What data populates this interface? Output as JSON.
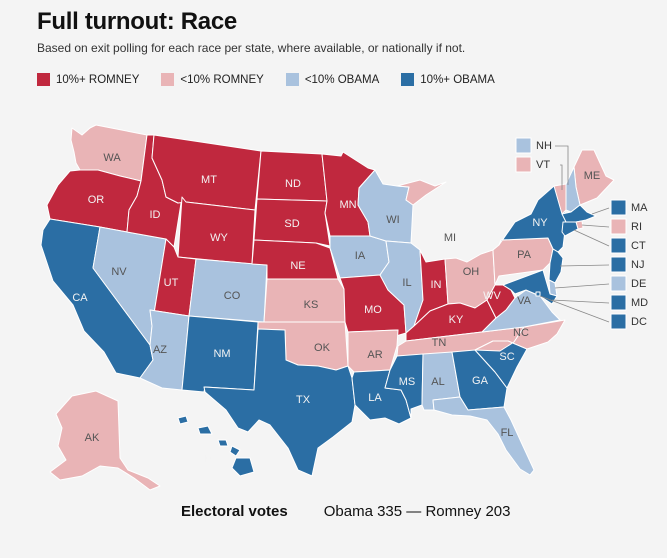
{
  "title": "Full turnout: Race",
  "subtitle": "Based on exit polling for each race per state, where available, or nationally if not.",
  "legend": [
    {
      "label": "10%+ ROMNEY",
      "color": "#c0283e"
    },
    {
      "label": "<10% ROMNEY",
      "color": "#e9b4b6"
    },
    {
      "label": "<10% OBAMA",
      "color": "#a9c2de"
    },
    {
      "label": "10%+ OBAMA",
      "color": "#2b6ea4"
    }
  ],
  "categories": {
    "R10": "10%+ ROMNEY",
    "R": "<10% ROMNEY",
    "O": "<10% OBAMA",
    "O10": "10%+ OBAMA"
  },
  "states": {
    "WA": "R",
    "OR": "R10",
    "CA": "O10",
    "NV": "O",
    "ID": "R10",
    "MT": "R10",
    "WY": "R10",
    "UT": "R10",
    "AZ": "O",
    "CO": "O",
    "NM": "O10",
    "ND": "R10",
    "SD": "R10",
    "NE": "R10",
    "KS": "R",
    "OK": "R",
    "TX": "O10",
    "MN": "R10",
    "IA": "O",
    "MO": "R10",
    "AR": "R",
    "LA": "O10",
    "WI": "O",
    "IL": "O",
    "MI": "R",
    "IN": "R10",
    "OH": "R",
    "KY": "R10",
    "TN": "R",
    "MS": "O10",
    "AL": "O",
    "GA": "O10",
    "FL": "O",
    "SC": "O10",
    "NC": "R",
    "VA": "O",
    "WV": "R10",
    "PA": "R",
    "NY": "O10",
    "ME": "R",
    "AK": "R",
    "HI": "O10",
    "NH": "O",
    "VT": "R",
    "MA": "O10",
    "RI": "R",
    "CT": "O10",
    "NJ": "O10",
    "DE": "O",
    "MD": "O10",
    "DC": "O10"
  },
  "side_boxes_left": [
    "NH",
    "VT"
  ],
  "side_boxes_right": [
    "MA",
    "RI",
    "CT",
    "NJ",
    "DE",
    "MD",
    "DC"
  ],
  "footer": {
    "label": "Electoral votes",
    "result": "Obama 335 — Romney 203"
  }
}
